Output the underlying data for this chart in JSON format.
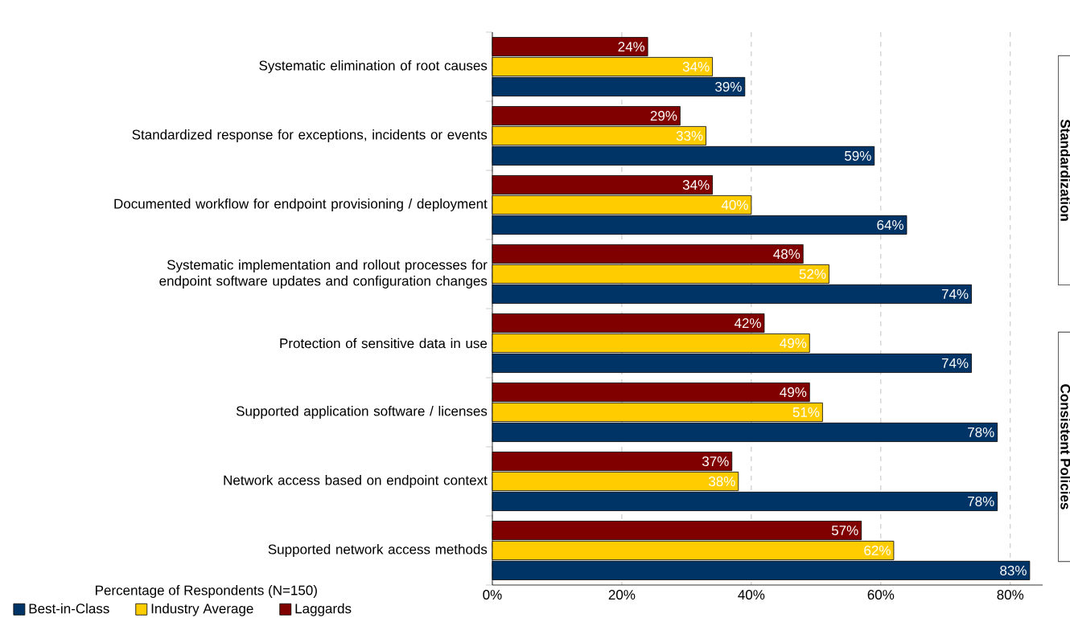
{
  "chart_data": {
    "type": "bar",
    "orientation": "horizontal",
    "xlabel": "Percentage of Respondents (N=150)",
    "categories": [
      "Systematic elimination of root causes",
      "Standardized response for exceptions, incidents or events",
      "Documented workflow for endpoint provisioning / deployment",
      "Systematic implementation and rollout processes for endpoint software updates and configuration changes",
      "Protection of sensitive data in use",
      "Supported application software / licenses",
      "Network access based on endpoint context",
      "Supported network access methods"
    ],
    "series": [
      {
        "name": "Best-in-Class",
        "color": "#003366",
        "values": [
          39,
          59,
          64,
          74,
          74,
          78,
          78,
          83
        ],
        "value_labels": [
          "39%",
          "59%",
          "64%",
          "74%",
          "74%",
          "78%",
          "78%",
          "83%"
        ]
      },
      {
        "name": "Industry Average",
        "color": "#ffcc00",
        "values": [
          34,
          33,
          40,
          52,
          49,
          51,
          38,
          62
        ],
        "value_labels": [
          "34%",
          "33%",
          "40%",
          "52%",
          "49%",
          "51%",
          "38%",
          "62%"
        ]
      },
      {
        "name": "Laggards",
        "color": "#800000",
        "values": [
          24,
          29,
          34,
          48,
          42,
          49,
          37,
          57
        ],
        "value_labels": [
          "24%",
          "29%",
          "34%",
          "48%",
          "42%",
          "49%",
          "37%",
          "57%"
        ]
      }
    ],
    "xlim": [
      0,
      85
    ],
    "xticks": [
      {
        "value": 0,
        "label": "0%"
      },
      {
        "value": 20,
        "label": "20%"
      },
      {
        "value": 40,
        "label": "40%"
      },
      {
        "value": 60,
        "label": "60%"
      },
      {
        "value": 80,
        "label": "80%"
      }
    ],
    "grid": "x",
    "legend": "bottom left",
    "annotations": [
      "Standardization",
      "Consistent Policies"
    ]
  }
}
